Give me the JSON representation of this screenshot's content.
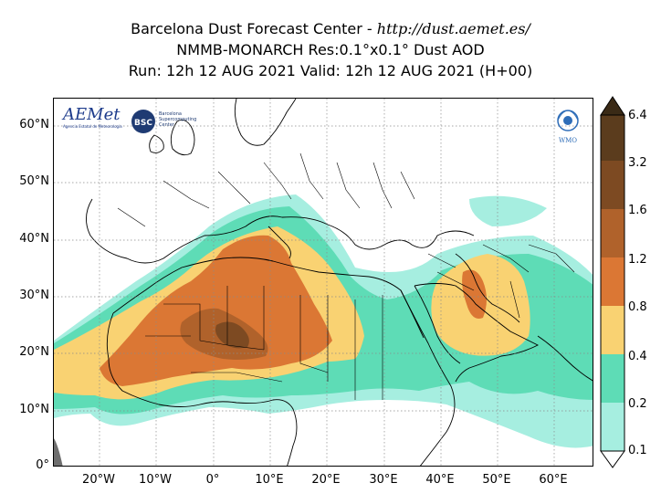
{
  "header": {
    "title_prefix": "Barcelona Dust Forecast Center - ",
    "title_url": "http://dust.aemet.es/",
    "model_line": "NMMB-MONARCH   Res:0.1°x0.1°   Dust AOD",
    "run_line": "Run: 12h 12 AUG 2021   Valid: 12h 12 AUG 2021 (H+00)"
  },
  "map": {
    "lat_labels": [
      "60°N",
      "50°N",
      "40°N",
      "30°N",
      "20°N",
      "10°N",
      "0°"
    ],
    "lon_labels": [
      "20°W",
      "10°W",
      "0°",
      "10°E",
      "20°E",
      "30°E",
      "40°E",
      "50°E",
      "60°E"
    ],
    "colors": {
      "sea": "#ffffff",
      "land_outline": "#000000",
      "grid": "#8a8a8a",
      "missing_data": "#6e6e6e"
    }
  },
  "logos": {
    "aemet": "AEMet",
    "aemet_sub": "Agencia Estatal de Meteorología",
    "bsc": "BSC",
    "bsc_name": "Barcelona Supercomputing Center",
    "wmo": "WMO"
  },
  "colorbar": {
    "levels": [
      "0.1",
      "0.2",
      "0.4",
      "0.8",
      "1.2",
      "1.6",
      "3.2",
      "6.4"
    ],
    "colors": [
      "#a6eee0",
      "#5edcb6",
      "#f9d272",
      "#db7734",
      "#b0622b",
      "#7d4a22",
      "#5b3c1d",
      "#3a2a16"
    ]
  }
}
